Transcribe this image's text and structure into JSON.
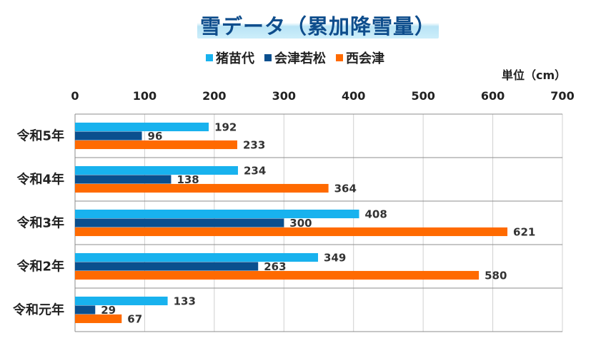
{
  "chart_data": {
    "type": "bar",
    "orientation": "horizontal",
    "title": "雪データ（累加降雪量）",
    "unit": "単位（cm）",
    "categories": [
      "令和5年",
      "令和4年",
      "令和3年",
      "令和2年",
      "令和元年"
    ],
    "series": [
      {
        "name": "猪苗代",
        "color": "#18b2ee",
        "values": [
          192,
          234,
          408,
          349,
          133
        ]
      },
      {
        "name": "会津若松",
        "color": "#0a4f8e",
        "values": [
          96,
          138,
          300,
          263,
          29
        ]
      },
      {
        "name": "西会津",
        "color": "#ff6a00",
        "values": [
          233,
          364,
          621,
          580,
          67
        ]
      }
    ],
    "xlim": [
      0,
      700
    ],
    "xticks": [
      0,
      100,
      200,
      300,
      400,
      500,
      600,
      700
    ],
    "xaxis_position": "top",
    "grid": true,
    "legend_position": "top-center"
  }
}
